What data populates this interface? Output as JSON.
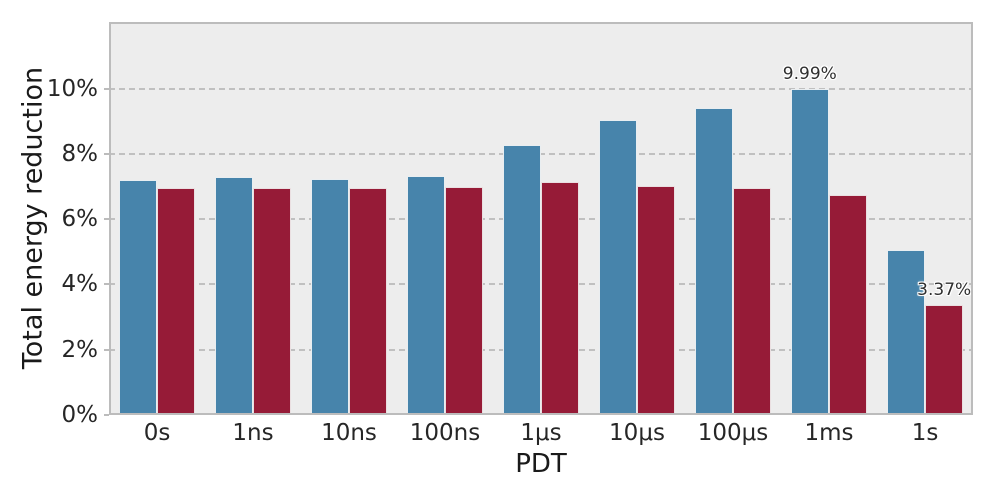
{
  "chart_data": {
    "type": "bar",
    "title": "",
    "xlabel": "PDT",
    "ylabel": "Total energy reduction",
    "categories": [
      "0s",
      "1ns",
      "10ns",
      "100ns",
      "1μs",
      "10μs",
      "100μs",
      "1ms",
      "1s"
    ],
    "series": [
      {
        "name": "blue-series",
        "color": "#4784ab",
        "edge_color": "#e9eef1",
        "values": [
          7.21,
          7.29,
          7.24,
          7.32,
          8.28,
          9.05,
          9.4,
          9.99,
          5.06
        ]
      },
      {
        "name": "red-series",
        "color": "#961b37",
        "edge_color": "#eadfe1",
        "values": [
          6.96,
          6.95,
          6.95,
          6.98,
          7.13,
          7.01,
          6.95,
          6.75,
          3.37
        ]
      }
    ],
    "yticks": [
      "0%",
      "2%",
      "4%",
      "6%",
      "8%",
      "10%"
    ],
    "ytick_values": [
      0,
      2,
      4,
      6,
      8,
      10
    ],
    "ylim": [
      0,
      12.04
    ],
    "grid": "horizontal-dashed",
    "legend": "none",
    "annotations": [
      {
        "text": "9.99%",
        "series_index": 0,
        "category_index": 7
      },
      {
        "text": "3.37%",
        "series_index": 1,
        "category_index": 8
      }
    ],
    "plot_bg_color": "#ededed",
    "grid_color": "#c0c0c0",
    "spine_color": "#bcbcbc"
  }
}
